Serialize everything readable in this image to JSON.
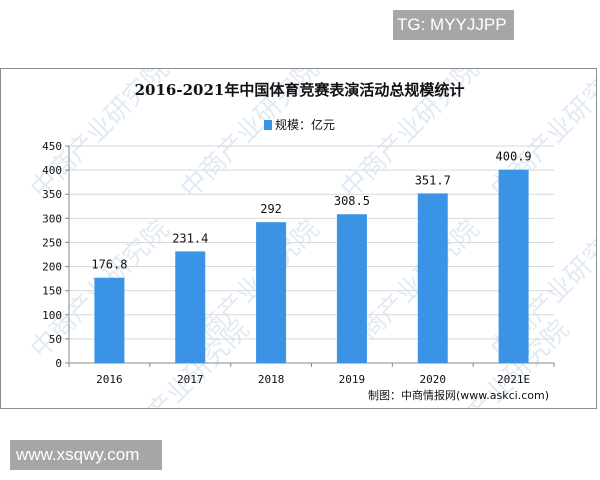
{
  "badges": {
    "top_right": "TG: MYYJJPP",
    "bottom_left": "www.xsqwy.com"
  },
  "watermark_text": "中商产业研究院",
  "chart_data": {
    "type": "bar",
    "title": "2016-2021年中国体育竞赛表演活动总规模统计",
    "legend": [
      {
        "name": "规模：亿元",
        "color": "#3b93e5"
      }
    ],
    "legend_position": "top",
    "categories": [
      "2016",
      "2017",
      "2018",
      "2019",
      "2020",
      "2021E"
    ],
    "series": [
      {
        "name": "规模：亿元",
        "values": [
          176.8,
          231.4,
          292,
          308.5,
          351.7,
          400.9
        ],
        "labels": [
          "176.8",
          "231.4",
          "292",
          "308.5",
          "351.7",
          "400.9"
        ]
      }
    ],
    "xlabel": "",
    "ylabel": "",
    "ylim": [
      0,
      450
    ],
    "yticks": [
      0,
      50,
      100,
      150,
      200,
      250,
      300,
      350,
      400,
      450
    ],
    "grid": true,
    "bar_color": "#3b93e5",
    "source": "制图：中商情报网(www.askci.com)"
  }
}
